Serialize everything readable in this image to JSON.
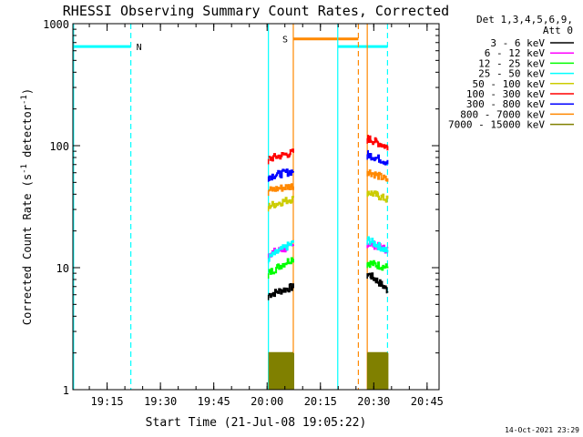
{
  "chart_data": {
    "type": "line",
    "title": "RHESSI Observing Summary Count Rates, Corrected",
    "xlabel": "Start Time (21-Jul-08 19:05:22)",
    "ylabel_main": "Corrected Count Rate (s",
    "ylabel_sup1": "-1",
    "ylabel_mid": " detector",
    "ylabel_sup2": "-1",
    "ylabel_end": ")",
    "y_scale": "log",
    "ylim": [
      1,
      1000
    ],
    "y_ticks": [
      {
        "value": 1,
        "label": "1"
      },
      {
        "value": 10,
        "label": "10"
      },
      {
        "value": 100,
        "label": "100"
      },
      {
        "value": 1000,
        "label": "1000"
      }
    ],
    "xlim_minutes": [
      0,
      103
    ],
    "x_ticks": [
      {
        "minute": 9.63,
        "label": "19:15"
      },
      {
        "minute": 24.63,
        "label": "19:30"
      },
      {
        "minute": 39.63,
        "label": "19:45"
      },
      {
        "minute": 54.63,
        "label": "20:00"
      },
      {
        "minute": 69.63,
        "label": "20:15"
      },
      {
        "minute": 84.63,
        "label": "20:30"
      },
      {
        "minute": 99.63,
        "label": "20:45"
      }
    ],
    "legend": {
      "position": "right",
      "header": [
        "Det 1,3,4,5,6,9,",
        "Att 0"
      ]
    },
    "series": [
      {
        "name": "3 - 6 keV",
        "color": "#000000",
        "seg1": [
          6.0,
          7.0
        ],
        "seg2": [
          9.0,
          6.5
        ]
      },
      {
        "name": "6 - 12 keV",
        "color": "#ff00ff",
        "seg1": [
          13.0,
          15.0
        ],
        "seg2": [
          16.0,
          14.0
        ]
      },
      {
        "name": "12 - 25 keV",
        "color": "#00ff00",
        "seg1": [
          9.0,
          12.0
        ],
        "seg2": [
          11.0,
          10.0
        ]
      },
      {
        "name": "25 - 50 keV",
        "color": "#00ffff",
        "seg1": [
          12.0,
          16.0
        ],
        "seg2": [
          17.0,
          13.5
        ]
      },
      {
        "name": "50 - 100 keV",
        "color": "#cccc00",
        "seg1": [
          32.0,
          37.0
        ],
        "seg2": [
          42.0,
          36.0
        ]
      },
      {
        "name": "100 - 300 keV",
        "color": "#ff0000",
        "seg1": [
          78.0,
          88.0
        ],
        "seg2": [
          115.0,
          97.0
        ]
      },
      {
        "name": "300 - 800 keV",
        "color": "#0000ff",
        "seg1": [
          56.0,
          62.0
        ],
        "seg2": [
          85.0,
          73.0
        ]
      },
      {
        "name": "800 - 7000 keV",
        "color": "#ff8800",
        "seg1": [
          43.0,
          47.0
        ],
        "seg2": [
          62.0,
          52.0
        ]
      },
      {
        "name": "7000 - 15000 keV",
        "color": "#808000",
        "seg1": [
          2.0,
          2.0
        ],
        "seg2": [
          2.0,
          2.0
        ]
      }
    ],
    "data_segments_minutes": [
      [
        55.0,
        62.0
      ],
      [
        82.8,
        88.5
      ]
    ],
    "flags": [
      {
        "label": "N",
        "color": "#00ffff",
        "value": 650,
        "start": 0,
        "end": 16.3
      },
      {
        "label": "N",
        "color": "#00ffff",
        "value": 650,
        "start": 74.5,
        "end": 88.5
      },
      {
        "label": "S",
        "color": "#ff8800",
        "value": 750,
        "start": 62.0,
        "end": 80.3
      }
    ],
    "vlines": [
      {
        "minute": 0.2,
        "color": "#00ffff",
        "style": "solid"
      },
      {
        "minute": 16.3,
        "color": "#00ffff",
        "style": "dashed"
      },
      {
        "minute": 55.0,
        "color": "#00ffff",
        "style": "solid"
      },
      {
        "minute": 62.0,
        "color": "#ff8800",
        "style": "solid"
      },
      {
        "minute": 74.5,
        "color": "#00ffff",
        "style": "solid"
      },
      {
        "minute": 80.3,
        "color": "#ff8800",
        "style": "dashed"
      },
      {
        "minute": 82.8,
        "color": "#ff8800",
        "style": "solid"
      },
      {
        "minute": 88.5,
        "color": "#00ffff",
        "style": "dashed"
      }
    ],
    "timestamp": "14-Oct-2021 23:29"
  }
}
